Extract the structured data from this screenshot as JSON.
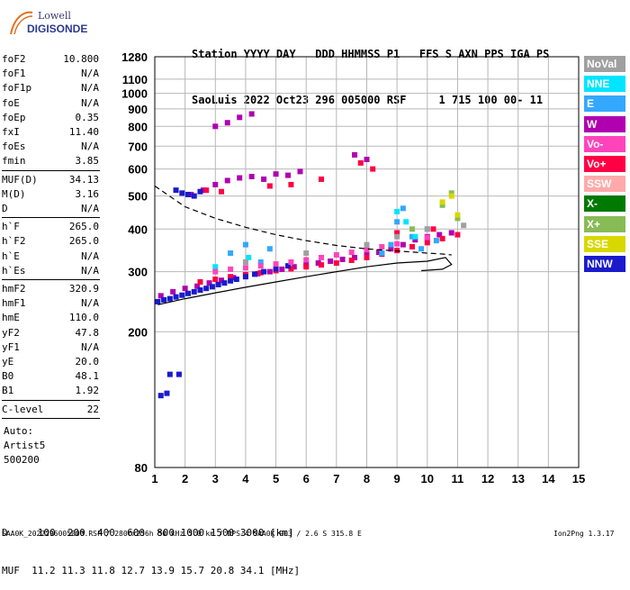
{
  "logo": {
    "line1": "Lowell",
    "line2": "DIGISONDE"
  },
  "header": {
    "line1": "Station YYYY DAY   DDD HHMMSS P1   FFS S AXN PPS IGA PS",
    "line2": "SaoLuis 2022 Oct23 296 005000 RSF     1 715 100 00- 11"
  },
  "params": {
    "g1": [
      {
        "label": "foF2",
        "value": "10.800"
      },
      {
        "label": "foF1",
        "value": "N/A"
      },
      {
        "label": "foF1p",
        "value": "N/A"
      },
      {
        "label": "foE",
        "value": "N/A"
      },
      {
        "label": "foEp",
        "value": "0.35"
      },
      {
        "label": "fxI",
        "value": "11.40"
      },
      {
        "label": "foEs",
        "value": "N/A"
      },
      {
        "label": "fmin",
        "value": "3.85"
      }
    ],
    "g2": [
      {
        "label": "MUF(D)",
        "value": "34.13"
      },
      {
        "label": "M(D)",
        "value": "3.16"
      },
      {
        "label": "D",
        "value": "N/A"
      }
    ],
    "g3": [
      {
        "label": "h`F",
        "value": "265.0"
      },
      {
        "label": "h`F2",
        "value": "265.0"
      },
      {
        "label": "h`E",
        "value": "N/A"
      },
      {
        "label": "h`Es",
        "value": "N/A"
      }
    ],
    "g4": [
      {
        "label": "hmF2",
        "value": "320.9"
      },
      {
        "label": "hmF1",
        "value": "N/A"
      },
      {
        "label": "hmE",
        "value": "110.0"
      },
      {
        "label": "yF2",
        "value": "47.8"
      },
      {
        "label": "yF1",
        "value": "N/A"
      },
      {
        "label": "yE",
        "value": "20.0"
      },
      {
        "label": "B0",
        "value": "48.1"
      },
      {
        "label": "B1",
        "value": "1.92"
      }
    ],
    "g5": [
      {
        "label": "C-level",
        "value": "22"
      }
    ]
  },
  "scaler": {
    "line1": "Auto:",
    "line2": "Artist5",
    "line3": "500200"
  },
  "legend": [
    {
      "label": "NoVal",
      "color": "#a0a0a0"
    },
    {
      "label": "NNE",
      "color": "#00e5ff"
    },
    {
      "label": "E",
      "color": "#33a8ff"
    },
    {
      "label": "W",
      "color": "#b000b0"
    },
    {
      "label": "Vo-",
      "color": "#ff44bb"
    },
    {
      "label": "Vo+",
      "color": "#ff0044"
    },
    {
      "label": "SSW",
      "color": "#ffaaaa"
    },
    {
      "label": "X-",
      "color": "#007a00"
    },
    {
      "label": "X+",
      "color": "#88bb55"
    },
    {
      "label": "SSE",
      "color": "#d8d800"
    },
    {
      "label": "NNW",
      "color": "#1a1acc"
    }
  ],
  "muf_table": {
    "row1": "D     100  200  400  600  800 1000 1500 3000 [km]",
    "row2": "MUF  11.2 11.3 11.8 12.7 13.9 15.7 20.8 34.1 [MHz]"
  },
  "footer": {
    "left": "SAA0K_2022296005000.RSF / 280fx256h 50 kHz 5.0 km / DPS-4 SAA0K 903 / 2.6 S 315.8 E",
    "right": "Ion2Png 1.3.17"
  },
  "chart_data": {
    "type": "scatter",
    "title": "",
    "xlabel": "",
    "ylabel": "",
    "xlim": [
      1,
      15
    ],
    "ylim": [
      80,
      1280
    ],
    "y_scale": "log",
    "x_ticks": [
      1,
      2,
      3,
      4,
      5,
      6,
      7,
      8,
      9,
      10,
      11,
      12,
      13,
      14,
      15
    ],
    "y_ticks": [
      80,
      200,
      300,
      400,
      500,
      600,
      700,
      800,
      900,
      1000,
      1100,
      1280
    ],
    "grid": true,
    "series": [
      {
        "name": "W",
        "color": "#b000b0",
        "x": [
          1.2,
          1.6,
          2.0,
          2.4,
          2.8,
          3.2,
          3.6,
          4.0,
          4.4,
          4.8,
          5.2,
          5.6,
          6.0,
          6.4,
          6.8,
          7.2,
          7.6,
          8.0,
          8.4,
          8.8,
          9.2,
          9.6,
          10.0,
          10.4,
          10.8,
          2.2,
          2.6,
          3.0,
          3.4,
          3.8,
          4.2,
          4.6,
          5.0,
          5.4,
          5.8,
          3.0,
          3.4,
          3.8,
          4.2,
          7.6,
          8.0
        ],
        "y": [
          255,
          262,
          268,
          272,
          278,
          283,
          288,
          292,
          296,
          300,
          305,
          310,
          314,
          318,
          322,
          326,
          330,
          336,
          342,
          350,
          360,
          372,
          380,
          385,
          390,
          505,
          520,
          540,
          555,
          565,
          570,
          560,
          580,
          575,
          590,
          800,
          820,
          850,
          870,
          660,
          640
        ]
      },
      {
        "name": "Vo+",
        "color": "#ff0044",
        "x": [
          2.5,
          3.0,
          3.5,
          4.0,
          4.5,
          5.0,
          5.5,
          6.0,
          6.5,
          7.0,
          7.5,
          8.0,
          8.5,
          9.0,
          9.5,
          10.0,
          10.5,
          11.0,
          2.7,
          3.2,
          4.8,
          5.5,
          6.5,
          7.8,
          8.2,
          9.0,
          10.2
        ],
        "y": [
          280,
          285,
          290,
          294,
          298,
          302,
          306,
          310,
          314,
          318,
          324,
          330,
          338,
          346,
          355,
          365,
          375,
          385,
          520,
          515,
          535,
          540,
          560,
          625,
          600,
          390,
          400
        ]
      },
      {
        "name": "NNW",
        "color": "#1a1acc",
        "x": [
          1.1,
          1.3,
          1.5,
          1.7,
          1.9,
          2.1,
          2.3,
          2.5,
          2.7,
          2.9,
          3.1,
          3.3,
          3.5,
          3.7,
          4.0,
          4.3,
          4.6,
          5.0,
          5.4,
          1.7,
          1.9,
          2.1,
          2.3,
          2.5,
          1.5,
          1.8,
          1.2,
          1.4
        ],
        "y": [
          245,
          248,
          250,
          253,
          256,
          259,
          262,
          265,
          268,
          271,
          275,
          278,
          282,
          285,
          290,
          295,
          300,
          306,
          312,
          520,
          510,
          505,
          500,
          515,
          150,
          150,
          130,
          132
        ]
      },
      {
        "name": "E",
        "color": "#33a8ff",
        "x": [
          8.5,
          8.8,
          9.0,
          9.2,
          9.5,
          9.8,
          10.0,
          10.3,
          3.5,
          4.0,
          4.5,
          4.8
        ],
        "y": [
          340,
          360,
          420,
          460,
          380,
          350,
          400,
          370,
          340,
          360,
          320,
          350
        ]
      },
      {
        "name": "NNE",
        "color": "#00e5ff",
        "x": [
          9.0,
          9.3,
          9.6,
          3.0,
          4.1
        ],
        "y": [
          450,
          420,
          380,
          310,
          330
        ]
      },
      {
        "name": "Vo-",
        "color": "#ff44bb",
        "x": [
          3.0,
          3.5,
          4.0,
          4.5,
          5.0,
          5.5,
          6.0,
          6.5,
          7.0,
          7.5,
          8.0,
          8.5,
          9.0,
          10.0
        ],
        "y": [
          300,
          305,
          308,
          312,
          316,
          320,
          325,
          330,
          336,
          342,
          348,
          355,
          362,
          378
        ]
      },
      {
        "name": "X+",
        "color": "#88bb55",
        "x": [
          9.5,
          10.5,
          11.0,
          10.8
        ],
        "y": [
          400,
          470,
          430,
          510
        ]
      },
      {
        "name": "SSE",
        "color": "#d8d800",
        "x": [
          10.5,
          10.8,
          11.0
        ],
        "y": [
          480,
          500,
          440
        ]
      },
      {
        "name": "NoVal",
        "color": "#a0a0a0",
        "x": [
          4.0,
          6.0,
          8.0,
          9.0,
          10.0,
          11.2
        ],
        "y": [
          320,
          340,
          360,
          380,
          400,
          410
        ]
      }
    ],
    "traces": [
      {
        "name": "ordinary-trace",
        "style": "solid",
        "x": [
          1.1,
          2,
          3,
          4,
          5,
          6,
          7,
          8,
          9,
          10,
          10.6,
          10.8,
          10.5,
          9.8
        ],
        "y": [
          240,
          250,
          260,
          270,
          280,
          290,
          300,
          310,
          318,
          322,
          330,
          315,
          305,
          302
        ]
      },
      {
        "name": "profile-curve",
        "style": "dashed",
        "x": [
          1.0,
          2.0,
          3.0,
          4.0,
          5.0,
          6.0,
          7.0,
          8.0,
          9.0,
          10.0,
          10.5,
          10.8
        ],
        "y": [
          535,
          465,
          430,
          405,
          385,
          370,
          358,
          350,
          345,
          340,
          338,
          336
        ]
      }
    ]
  }
}
